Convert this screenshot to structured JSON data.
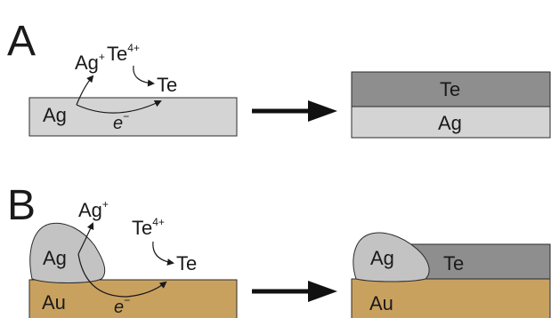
{
  "panels": {
    "a": {
      "letter": "A",
      "left": {
        "substrate": "Ag",
        "ion_ag_base": "Ag",
        "ion_ag_charge": "+",
        "ion_te_base": "Te",
        "ion_te_charge": "4+",
        "product": "Te",
        "electron_base": "e",
        "electron_charge": "−"
      },
      "right": {
        "top_layer": "Te",
        "bottom_layer": "Ag"
      }
    },
    "b": {
      "letter": "B",
      "left": {
        "substrate": "Au",
        "particle": "Ag",
        "ion_ag_base": "Ag",
        "ion_ag_charge": "+",
        "ion_te_base": "Te",
        "ion_te_charge": "4+",
        "product": "Te",
        "electron_base": "e",
        "electron_charge": "−"
      },
      "right": {
        "substrate": "Au",
        "particle": "Ag",
        "layer": "Te"
      }
    }
  },
  "colors": {
    "ag_layer": "#d4d4d4",
    "te_layer": "#8e8e8e",
    "au_layer": "#c9a15f",
    "ag_particle": "#c3c3c3",
    "stroke": "#2b2b2b"
  }
}
